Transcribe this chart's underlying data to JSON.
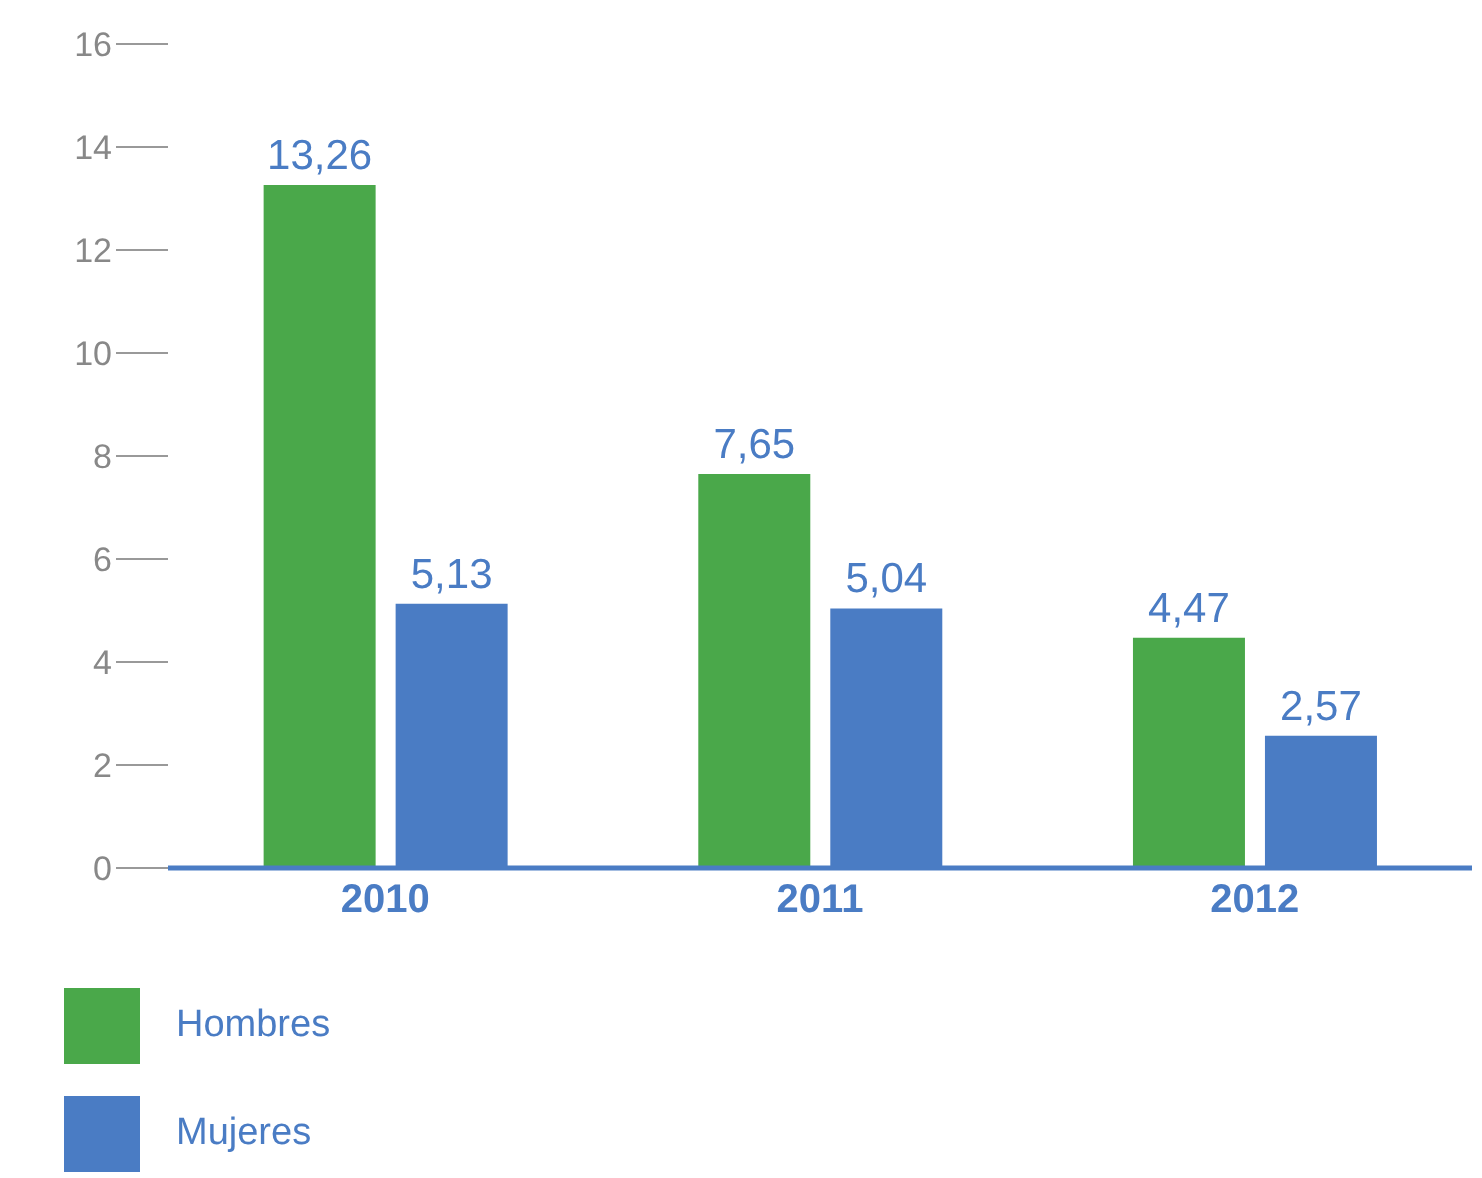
{
  "chart_data": {
    "type": "bar",
    "categories": [
      "2010",
      "2011",
      "2012"
    ],
    "series": [
      {
        "name": "Hombres",
        "color": "#4aa84a",
        "values": [
          13.26,
          7.65,
          4.47
        ],
        "value_labels": [
          "13,26",
          "7,65",
          "4,47"
        ]
      },
      {
        "name": "Mujeres",
        "color": "#4a7cc4",
        "values": [
          5.13,
          5.04,
          2.57
        ],
        "value_labels": [
          "5,13",
          "5,04",
          "2,57"
        ]
      }
    ],
    "ylim": [
      0,
      16
    ],
    "yticks": [
      0,
      2,
      4,
      6,
      8,
      10,
      12,
      14,
      16
    ],
    "grid": false,
    "legend": "bottom left"
  }
}
